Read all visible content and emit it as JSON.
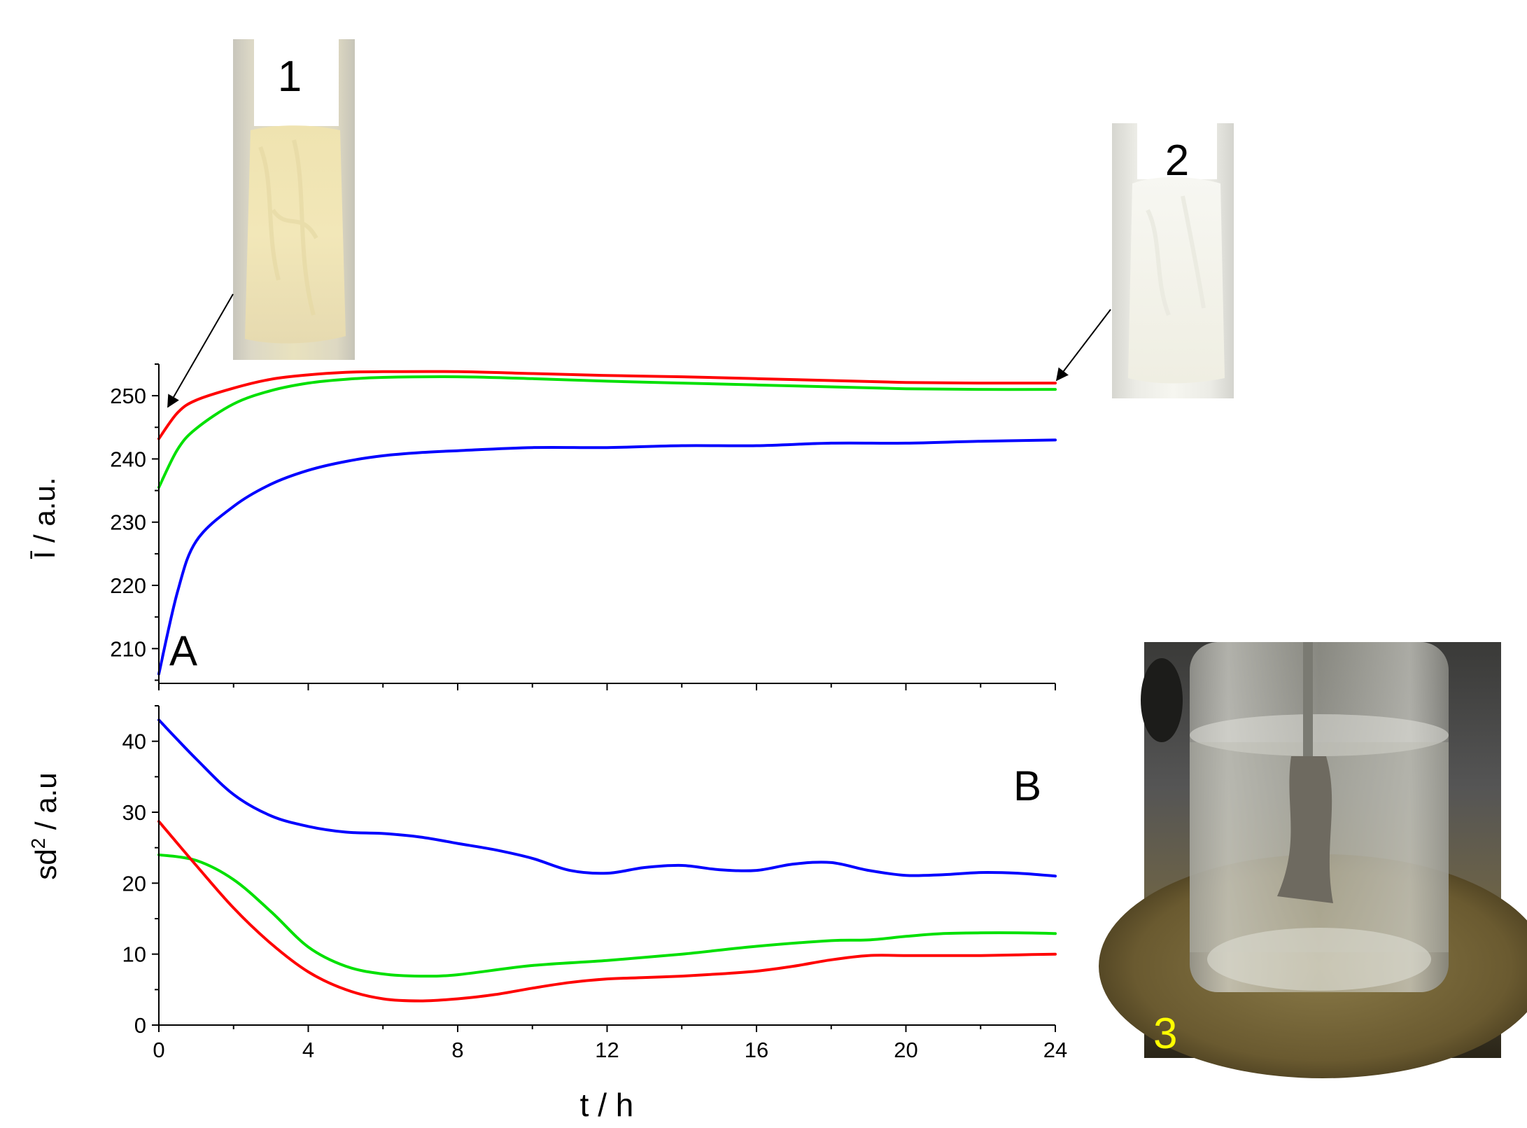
{
  "chart_data": [
    {
      "panel": "A",
      "type": "line",
      "ylabel": "Ī / a.u.",
      "xlim": [
        0,
        24
      ],
      "ylim": [
        204.5,
        255
      ],
      "yticks": [
        210,
        220,
        230,
        240,
        250
      ],
      "panel_label": "A",
      "grid": false,
      "series": [
        {
          "color": "#ff0000",
          "x": [
            0,
            0.5,
            1,
            2,
            3,
            4,
            5,
            6,
            8,
            10,
            12,
            14,
            16,
            18,
            20,
            22,
            24
          ],
          "y": [
            243.2,
            247.3,
            249.3,
            251.2,
            252.6,
            253.3,
            253.7,
            253.8,
            253.8,
            253.5,
            253.2,
            253.0,
            252.7,
            252.4,
            252.1,
            252.0,
            252.0
          ]
        },
        {
          "color": "#00e000",
          "x": [
            0,
            0.5,
            1,
            2,
            3,
            4,
            5,
            6,
            8,
            10,
            12,
            14,
            16,
            18,
            20,
            22,
            24
          ],
          "y": [
            235.5,
            241.5,
            244.8,
            248.7,
            250.8,
            252.0,
            252.6,
            252.9,
            253.0,
            252.7,
            252.3,
            252.0,
            251.7,
            251.4,
            251.1,
            251.0,
            251.0
          ]
        },
        {
          "color": "#0000ff",
          "x": [
            0,
            0.5,
            1,
            2,
            3,
            4,
            5,
            6,
            7,
            8,
            10,
            12,
            14,
            16,
            18,
            20,
            22,
            24
          ],
          "y": [
            206.0,
            219.0,
            227.0,
            232.5,
            236.0,
            238.2,
            239.6,
            240.5,
            241.0,
            241.3,
            241.8,
            241.8,
            242.1,
            242.1,
            242.5,
            242.5,
            242.8,
            243.0
          ]
        }
      ]
    },
    {
      "panel": "B",
      "type": "line",
      "ylabel": "sd",
      "ylabel_sup": "2",
      "ylabel_suffix": " / a.u",
      "xlabel": "t / h",
      "xlim": [
        0,
        24
      ],
      "ylim": [
        0,
        45
      ],
      "yticks": [
        0,
        10,
        20,
        30,
        40
      ],
      "xticks": [
        0,
        4,
        8,
        12,
        16,
        20,
        24
      ],
      "panel_label": "B",
      "grid": false,
      "series": [
        {
          "color": "#0000ff",
          "x": [
            0,
            1,
            2,
            3,
            4,
            5,
            6,
            7,
            8,
            9,
            10,
            11,
            12,
            13,
            14,
            15,
            16,
            17,
            18,
            19,
            20,
            21,
            22,
            23,
            24
          ],
          "y": [
            43.0,
            37.5,
            32.5,
            29.5,
            28.0,
            27.2,
            27.0,
            26.5,
            25.6,
            24.7,
            23.5,
            21.8,
            21.4,
            22.2,
            22.5,
            21.9,
            21.8,
            22.7,
            22.9,
            21.8,
            21.1,
            21.2,
            21.5,
            21.4,
            21.0
          ]
        },
        {
          "color": "#00e000",
          "x": [
            0,
            1,
            2,
            3,
            4,
            5,
            6,
            7,
            8,
            10,
            12,
            14,
            16,
            18,
            19,
            20,
            21,
            22,
            23,
            24
          ],
          "y": [
            24.0,
            23.2,
            20.5,
            16.0,
            11.0,
            8.3,
            7.2,
            6.9,
            7.1,
            8.4,
            9.1,
            10.0,
            11.1,
            11.9,
            12.0,
            12.5,
            12.9,
            13.0,
            13.0,
            12.9
          ]
        },
        {
          "color": "#ff0000",
          "x": [
            0,
            1,
            2,
            3,
            4,
            5,
            6,
            7,
            8,
            9,
            10,
            11,
            12,
            13,
            14,
            15,
            16,
            17,
            18,
            19,
            20,
            21,
            22,
            23,
            24
          ],
          "y": [
            28.7,
            22.5,
            16.5,
            11.5,
            7.5,
            5.0,
            3.7,
            3.4,
            3.7,
            4.3,
            5.2,
            6.0,
            6.5,
            6.7,
            6.9,
            7.2,
            7.6,
            8.3,
            9.2,
            9.8,
            9.8,
            9.8,
            9.8,
            9.9,
            10.0
          ]
        }
      ]
    }
  ],
  "insets": {
    "sample1_label": "1",
    "sample2_label": "2",
    "photo3_label": "3"
  }
}
